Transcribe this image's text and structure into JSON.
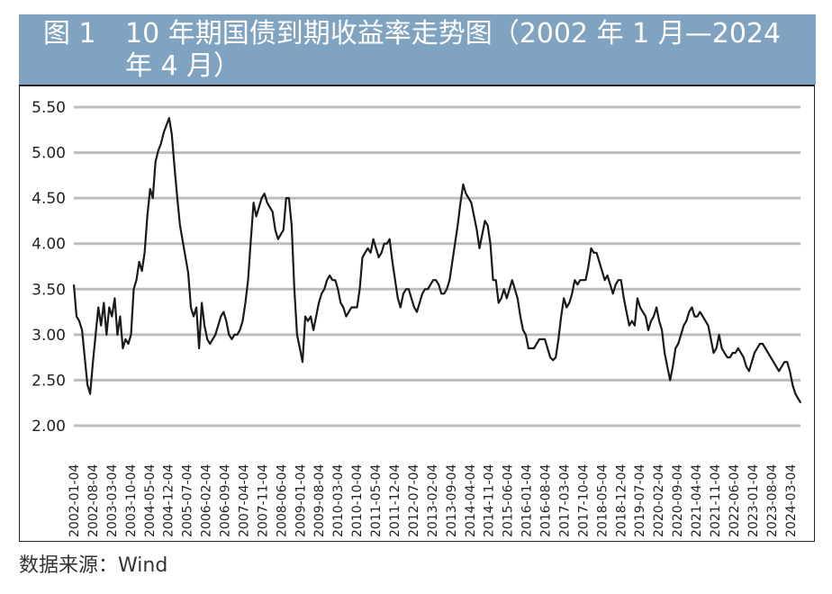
{
  "header": {
    "figure_number": "图 1",
    "title": "10 年期国债到期收益率走势图（2002 年 1 月—2024 年 4 月）"
  },
  "footer": {
    "source": "数据来源：Wind"
  },
  "colors": {
    "header_bg": "#7fa3c0",
    "line": "#1a1a1a",
    "grid": "#bdbdbd"
  },
  "chart_data": {
    "type": "line",
    "title": "10 年期国债到期收益率走势图（2002 年 1 月—2024 年 4 月）",
    "xlabel": "",
    "ylabel": "",
    "ylim": [
      2.0,
      5.5
    ],
    "yticks": [
      "5.50",
      "5.00",
      "4.50",
      "4.00",
      "3.50",
      "3.00",
      "2.50",
      "2.00"
    ],
    "xlim": [
      "2002-01-04",
      "2024-04-30"
    ],
    "xticks": [
      "2002-01-04",
      "2002-08-04",
      "2003-03-04",
      "2003-10-04",
      "2004-05-04",
      "2004-12-04",
      "2005-07-04",
      "2006-02-04",
      "2006-09-04",
      "2007-04-04",
      "2007-11-04",
      "2008-06-04",
      "2009-01-04",
      "2009-08-04",
      "2010-03-04",
      "2010-10-04",
      "2011-05-04",
      "2011-12-04",
      "2012-07-04",
      "2013-02-04",
      "2013-09-04",
      "2014-04-04",
      "2014-11-04",
      "2015-06-04",
      "2016-01-04",
      "2016-08-04",
      "2017-03-04",
      "2017-10-04",
      "2018-05-04",
      "2018-12-04",
      "2019-07-04",
      "2020-02-04",
      "2020-09-04",
      "2021-04-04",
      "2021-11-04",
      "2022-06-04",
      "2023-01-04",
      "2023-08-04",
      "2024-03-04"
    ],
    "grid": "horizontal",
    "legend": "none",
    "series": [
      {
        "points": [
          [
            "2002-01",
            3.55
          ],
          [
            "2002-02",
            3.2
          ],
          [
            "2002-03",
            3.15
          ],
          [
            "2002-04",
            3.05
          ],
          [
            "2002-05",
            2.75
          ],
          [
            "2002-06",
            2.45
          ],
          [
            "2002-07",
            2.35
          ],
          [
            "2002-08",
            2.7
          ],
          [
            "2002-09",
            3.0
          ],
          [
            "2002-10",
            3.3
          ],
          [
            "2002-11",
            3.1
          ],
          [
            "2002-12",
            3.35
          ],
          [
            "2003-01",
            3.0
          ],
          [
            "2003-02",
            3.3
          ],
          [
            "2003-03",
            3.2
          ],
          [
            "2003-04",
            3.4
          ],
          [
            "2003-05",
            3.0
          ],
          [
            "2003-06",
            3.2
          ],
          [
            "2003-07",
            2.85
          ],
          [
            "2003-08",
            2.95
          ],
          [
            "2003-09",
            2.9
          ],
          [
            "2003-10",
            3.0
          ],
          [
            "2003-11",
            3.5
          ],
          [
            "2003-12",
            3.6
          ],
          [
            "2004-01",
            3.8
          ],
          [
            "2004-02",
            3.7
          ],
          [
            "2004-03",
            3.9
          ],
          [
            "2004-04",
            4.3
          ],
          [
            "2004-05",
            4.6
          ],
          [
            "2004-06",
            4.5
          ],
          [
            "2004-07",
            4.9
          ],
          [
            "2004-08",
            5.02
          ],
          [
            "2004-09",
            5.1
          ],
          [
            "2004-10",
            5.22
          ],
          [
            "2004-11",
            5.3
          ],
          [
            "2004-12",
            5.38
          ],
          [
            "2005-01",
            5.2
          ],
          [
            "2005-02",
            4.83
          ],
          [
            "2005-03",
            4.5
          ],
          [
            "2005-04",
            4.2
          ],
          [
            "2005-05",
            4.03
          ],
          [
            "2005-06",
            3.85
          ],
          [
            "2005-07",
            3.68
          ],
          [
            "2005-08",
            3.3
          ],
          [
            "2005-09",
            3.2
          ],
          [
            "2005-10",
            3.3
          ],
          [
            "2005-11",
            2.85
          ],
          [
            "2005-12",
            3.35
          ],
          [
            "2006-01",
            3.1
          ],
          [
            "2006-02",
            2.95
          ],
          [
            "2006-03",
            2.9
          ],
          [
            "2006-04",
            2.95
          ],
          [
            "2006-05",
            3.0
          ],
          [
            "2006-06",
            3.1
          ],
          [
            "2006-07",
            3.2
          ],
          [
            "2006-08",
            3.25
          ],
          [
            "2006-09",
            3.15
          ],
          [
            "2006-10",
            3.0
          ],
          [
            "2006-11",
            2.95
          ],
          [
            "2006-12",
            3.0
          ],
          [
            "2007-01",
            3.0
          ],
          [
            "2007-02",
            3.05
          ],
          [
            "2007-03",
            3.15
          ],
          [
            "2007-04",
            3.35
          ],
          [
            "2007-05",
            3.6
          ],
          [
            "2007-06",
            4.03
          ],
          [
            "2007-07",
            4.45
          ],
          [
            "2007-08",
            4.3
          ],
          [
            "2007-09",
            4.4
          ],
          [
            "2007-10",
            4.5
          ],
          [
            "2007-11",
            4.55
          ],
          [
            "2007-12",
            4.45
          ],
          [
            "2008-01",
            4.4
          ],
          [
            "2008-02",
            4.35
          ],
          [
            "2008-03",
            4.15
          ],
          [
            "2008-04",
            4.05
          ],
          [
            "2008-05",
            4.1
          ],
          [
            "2008-06",
            4.15
          ],
          [
            "2008-07",
            4.5
          ],
          [
            "2008-08",
            4.5
          ],
          [
            "2008-09",
            4.2
          ],
          [
            "2008-10",
            3.5
          ],
          [
            "2008-11",
            3.0
          ],
          [
            "2008-12",
            2.85
          ],
          [
            "2009-01",
            2.7
          ],
          [
            "2009-02",
            3.2
          ],
          [
            "2009-03",
            3.15
          ],
          [
            "2009-04",
            3.2
          ],
          [
            "2009-05",
            3.05
          ],
          [
            "2009-06",
            3.2
          ],
          [
            "2009-07",
            3.35
          ],
          [
            "2009-08",
            3.45
          ],
          [
            "2009-09",
            3.5
          ],
          [
            "2009-10",
            3.6
          ],
          [
            "2009-11",
            3.65
          ],
          [
            "2009-12",
            3.6
          ],
          [
            "2010-01",
            3.6
          ],
          [
            "2010-02",
            3.5
          ],
          [
            "2010-03",
            3.35
          ],
          [
            "2010-04",
            3.3
          ],
          [
            "2010-05",
            3.2
          ],
          [
            "2010-06",
            3.25
          ],
          [
            "2010-07",
            3.3
          ],
          [
            "2010-08",
            3.3
          ],
          [
            "2010-09",
            3.3
          ],
          [
            "2010-10",
            3.5
          ],
          [
            "2010-11",
            3.85
          ],
          [
            "2010-12",
            3.9
          ],
          [
            "2011-01",
            3.95
          ],
          [
            "2011-02",
            3.9
          ],
          [
            "2011-03",
            4.05
          ],
          [
            "2011-04",
            3.95
          ],
          [
            "2011-05",
            3.85
          ],
          [
            "2011-06",
            3.9
          ],
          [
            "2011-07",
            4.0
          ],
          [
            "2011-08",
            4.0
          ],
          [
            "2011-09",
            4.05
          ],
          [
            "2011-10",
            3.8
          ],
          [
            "2011-11",
            3.6
          ],
          [
            "2011-12",
            3.4
          ],
          [
            "2012-01",
            3.3
          ],
          [
            "2012-02",
            3.45
          ],
          [
            "2012-03",
            3.5
          ],
          [
            "2012-04",
            3.5
          ],
          [
            "2012-05",
            3.4
          ],
          [
            "2012-06",
            3.3
          ],
          [
            "2012-07",
            3.25
          ],
          [
            "2012-08",
            3.35
          ],
          [
            "2012-09",
            3.45
          ],
          [
            "2012-10",
            3.5
          ],
          [
            "2012-11",
            3.5
          ],
          [
            "2012-12",
            3.55
          ],
          [
            "2013-01",
            3.6
          ],
          [
            "2013-02",
            3.6
          ],
          [
            "2013-03",
            3.55
          ],
          [
            "2013-04",
            3.45
          ],
          [
            "2013-05",
            3.45
          ],
          [
            "2013-06",
            3.5
          ],
          [
            "2013-07",
            3.6
          ],
          [
            "2013-08",
            3.8
          ],
          [
            "2013-09",
            4.0
          ],
          [
            "2013-10",
            4.2
          ],
          [
            "2013-11",
            4.45
          ],
          [
            "2013-12",
            4.65
          ],
          [
            "2014-01",
            4.55
          ],
          [
            "2014-02",
            4.5
          ],
          [
            "2014-03",
            4.45
          ],
          [
            "2014-04",
            4.3
          ],
          [
            "2014-05",
            4.15
          ],
          [
            "2014-06",
            3.95
          ],
          [
            "2014-07",
            4.1
          ],
          [
            "2014-08",
            4.25
          ],
          [
            "2014-09",
            4.2
          ],
          [
            "2014-10",
            4.0
          ],
          [
            "2014-11",
            3.6
          ],
          [
            "2014-12",
            3.6
          ],
          [
            "2015-01",
            3.35
          ],
          [
            "2015-02",
            3.4
          ],
          [
            "2015-03",
            3.5
          ],
          [
            "2015-04",
            3.4
          ],
          [
            "2015-05",
            3.5
          ],
          [
            "2015-06",
            3.6
          ],
          [
            "2015-07",
            3.5
          ],
          [
            "2015-08",
            3.4
          ],
          [
            "2015-09",
            3.2
          ],
          [
            "2015-10",
            3.05
          ],
          [
            "2015-11",
            3.0
          ],
          [
            "2015-12",
            2.85
          ],
          [
            "2016-01",
            2.85
          ],
          [
            "2016-02",
            2.85
          ],
          [
            "2016-03",
            2.9
          ],
          [
            "2016-04",
            2.95
          ],
          [
            "2016-05",
            2.95
          ],
          [
            "2016-06",
            2.95
          ],
          [
            "2016-07",
            2.85
          ],
          [
            "2016-08",
            2.75
          ],
          [
            "2016-09",
            2.72
          ],
          [
            "2016-10",
            2.75
          ],
          [
            "2016-11",
            2.95
          ],
          [
            "2016-12",
            3.2
          ],
          [
            "2017-01",
            3.4
          ],
          [
            "2017-02",
            3.3
          ],
          [
            "2017-03",
            3.35
          ],
          [
            "2017-04",
            3.45
          ],
          [
            "2017-05",
            3.6
          ],
          [
            "2017-06",
            3.55
          ],
          [
            "2017-07",
            3.6
          ],
          [
            "2017-08",
            3.6
          ],
          [
            "2017-09",
            3.6
          ],
          [
            "2017-10",
            3.75
          ],
          [
            "2017-11",
            3.95
          ],
          [
            "2017-12",
            3.9
          ],
          [
            "2018-01",
            3.9
          ],
          [
            "2018-02",
            3.8
          ],
          [
            "2018-03",
            3.7
          ],
          [
            "2018-04",
            3.6
          ],
          [
            "2018-05",
            3.65
          ],
          [
            "2018-06",
            3.55
          ],
          [
            "2018-07",
            3.45
          ],
          [
            "2018-08",
            3.55
          ],
          [
            "2018-09",
            3.6
          ],
          [
            "2018-10",
            3.6
          ],
          [
            "2018-11",
            3.4
          ],
          [
            "2018-12",
            3.25
          ],
          [
            "2019-01",
            3.1
          ],
          [
            "2019-02",
            3.15
          ],
          [
            "2019-03",
            3.1
          ],
          [
            "2019-04",
            3.4
          ],
          [
            "2019-05",
            3.3
          ],
          [
            "2019-06",
            3.25
          ],
          [
            "2019-07",
            3.2
          ],
          [
            "2019-08",
            3.05
          ],
          [
            "2019-09",
            3.15
          ],
          [
            "2019-10",
            3.2
          ],
          [
            "2019-11",
            3.3
          ],
          [
            "2019-12",
            3.15
          ],
          [
            "2020-01",
            3.05
          ],
          [
            "2020-02",
            2.8
          ],
          [
            "2020-03",
            2.65
          ],
          [
            "2020-04",
            2.5
          ],
          [
            "2020-05",
            2.65
          ],
          [
            "2020-06",
            2.85
          ],
          [
            "2020-07",
            2.9
          ],
          [
            "2020-08",
            3.0
          ],
          [
            "2020-09",
            3.1
          ],
          [
            "2020-10",
            3.15
          ],
          [
            "2020-11",
            3.25
          ],
          [
            "2020-12",
            3.3
          ],
          [
            "2021-01",
            3.2
          ],
          [
            "2021-02",
            3.2
          ],
          [
            "2021-03",
            3.25
          ],
          [
            "2021-04",
            3.2
          ],
          [
            "2021-05",
            3.15
          ],
          [
            "2021-06",
            3.1
          ],
          [
            "2021-07",
            2.95
          ],
          [
            "2021-08",
            2.8
          ],
          [
            "2021-09",
            2.85
          ],
          [
            "2021-10",
            3.0
          ],
          [
            "2021-11",
            2.85
          ],
          [
            "2021-12",
            2.8
          ],
          [
            "2022-01",
            2.75
          ],
          [
            "2022-02",
            2.75
          ],
          [
            "2022-03",
            2.8
          ],
          [
            "2022-04",
            2.8
          ],
          [
            "2022-05",
            2.85
          ],
          [
            "2022-06",
            2.8
          ],
          [
            "2022-07",
            2.75
          ],
          [
            "2022-08",
            2.65
          ],
          [
            "2022-09",
            2.6
          ],
          [
            "2022-10",
            2.7
          ],
          [
            "2022-11",
            2.8
          ],
          [
            "2022-12",
            2.85
          ],
          [
            "2023-01",
            2.9
          ],
          [
            "2023-02",
            2.9
          ],
          [
            "2023-03",
            2.85
          ],
          [
            "2023-04",
            2.8
          ],
          [
            "2023-05",
            2.75
          ],
          [
            "2023-06",
            2.7
          ],
          [
            "2023-07",
            2.65
          ],
          [
            "2023-08",
            2.6
          ],
          [
            "2023-09",
            2.65
          ],
          [
            "2023-10",
            2.7
          ],
          [
            "2023-11",
            2.7
          ],
          [
            "2023-12",
            2.6
          ],
          [
            "2024-01",
            2.45
          ],
          [
            "2024-02",
            2.35
          ],
          [
            "2024-03",
            2.3
          ],
          [
            "2024-04",
            2.25
          ]
        ]
      }
    ]
  }
}
